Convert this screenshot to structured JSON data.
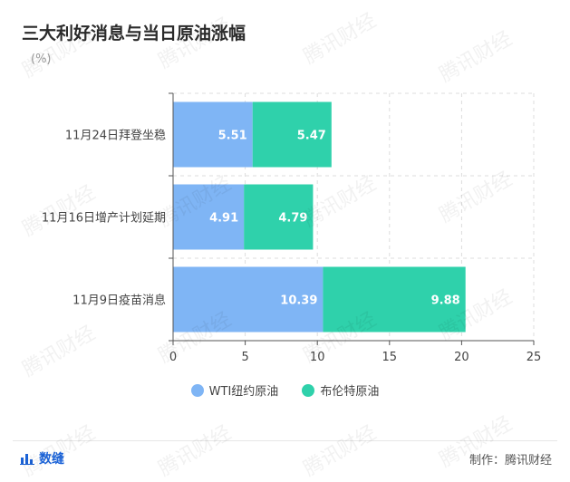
{
  "title": "三大利好消息与当日原油涨幅",
  "unit": "(%)",
  "legend": {
    "wti": "WTI纽约原油",
    "brent": "布伦特原油"
  },
  "colors": {
    "wti": "#7fb5f5",
    "brent": "#2fd1ab",
    "axis": "#555555",
    "grid": "#dddddd"
  },
  "footer": {
    "brand": "数缝",
    "credit": "制作：腾讯财经"
  },
  "watermark_text": "腾讯财经",
  "chart_data": {
    "type": "bar",
    "orientation": "horizontal",
    "stacked": true,
    "title": "三大利好消息与当日原油涨幅",
    "unit": "(%)",
    "categories": [
      "11月24日拜登坐稳",
      "11月16日增产计划延期",
      "11月9日疫苗消息"
    ],
    "series": [
      {
        "name": "WTI纽约原油",
        "values": [
          5.51,
          4.91,
          10.39
        ]
      },
      {
        "name": "布伦特原油",
        "values": [
          5.47,
          4.79,
          9.88
        ]
      }
    ],
    "xlim": [
      0,
      25
    ],
    "xticks": [
      "0",
      "5",
      "10",
      "15",
      "20",
      "25"
    ],
    "grid": true,
    "legend_position": "bottom"
  }
}
